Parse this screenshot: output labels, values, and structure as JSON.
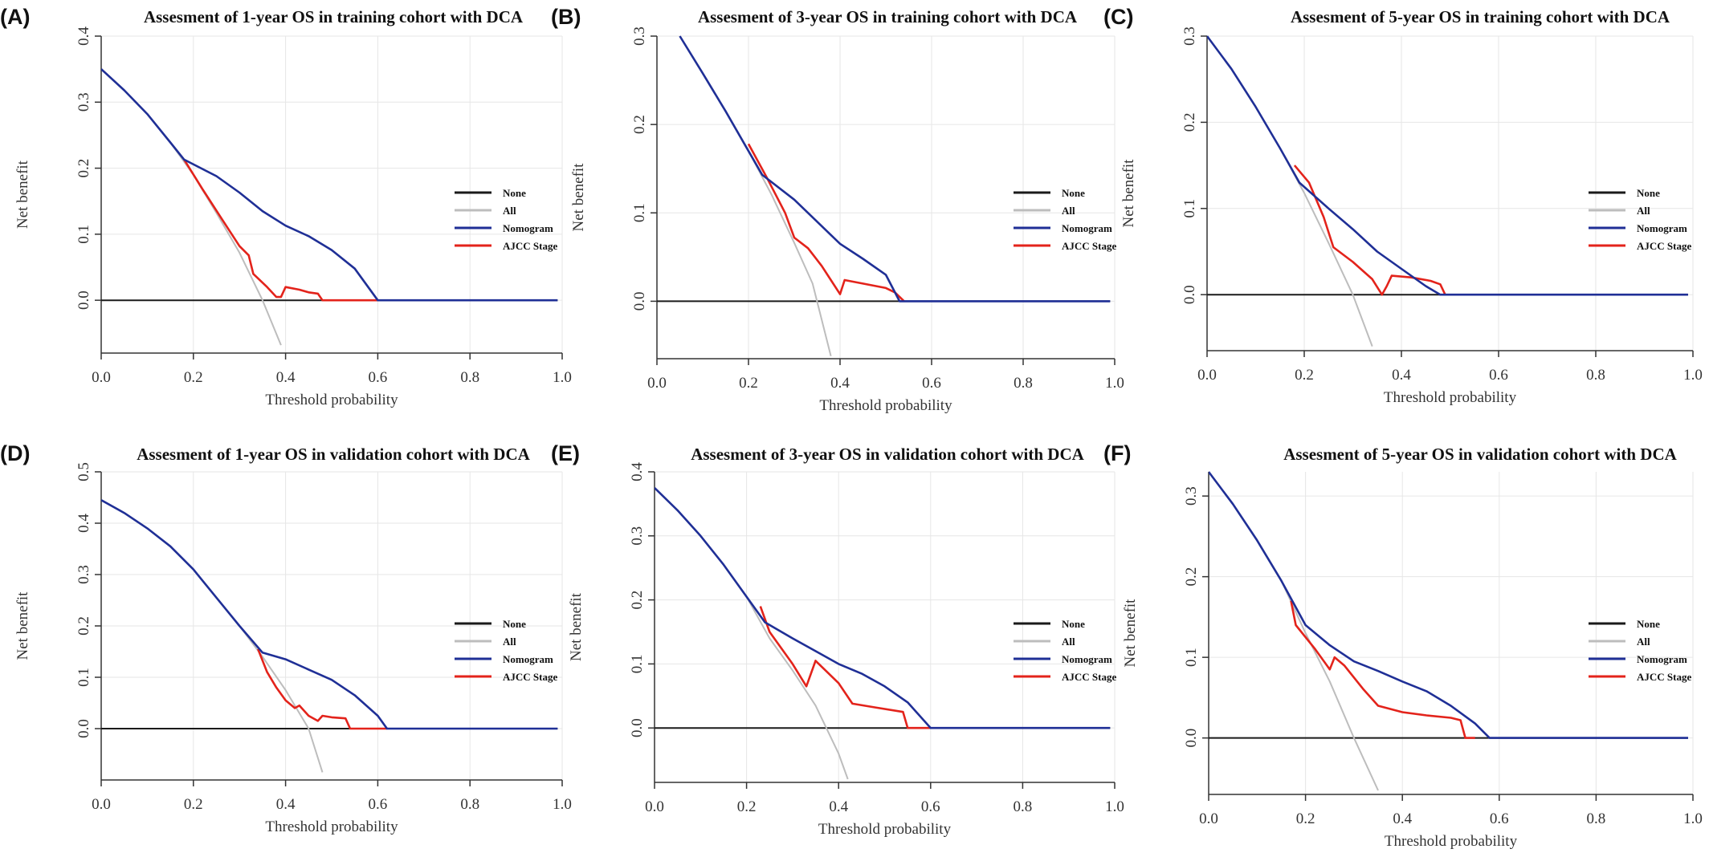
{
  "colors": {
    "none": "#1a1a1a",
    "all": "#bdbdbd",
    "nomogram": "#1f2f96",
    "ajcc": "#e3231b",
    "grid": "#e6e6e6"
  },
  "chart_data": [
    {
      "letter": "(A)",
      "type": "line",
      "title": "Assesment of 1-year OS in training cohort with DCA",
      "xlabel": "Threshold probability",
      "ylabel": "Net benefit",
      "xlim": [
        0,
        1
      ],
      "ylim": [
        -0.08,
        0.4
      ],
      "xticks": [
        0,
        0.2,
        0.4,
        0.6,
        0.8,
        1
      ],
      "xtick_labels": [
        "0.0",
        "0.2",
        "0.4",
        "0.6",
        "0.8",
        "1.0"
      ],
      "yticks": [
        0,
        0.1,
        0.2,
        0.3,
        0.4
      ],
      "ytick_labels": [
        "0.0",
        "0.1",
        "0.2",
        "0.3",
        "0.4"
      ],
      "grid": true,
      "legend": "right",
      "series": [
        {
          "name": "None",
          "x": [
            0,
            0.99
          ],
          "y": [
            0,
            0
          ]
        },
        {
          "name": "All",
          "x": [
            0,
            0.05,
            0.1,
            0.15,
            0.2,
            0.25,
            0.3,
            0.35,
            0.39
          ],
          "y": [
            0.35,
            0.318,
            0.282,
            0.239,
            0.19,
            0.132,
            0.072,
            0.0,
            -0.068
          ]
        },
        {
          "name": "Nomogram",
          "x": [
            0,
            0.05,
            0.1,
            0.15,
            0.18,
            0.25,
            0.3,
            0.35,
            0.4,
            0.45,
            0.5,
            0.55,
            0.6,
            0.99
          ],
          "y": [
            0.35,
            0.318,
            0.282,
            0.239,
            0.213,
            0.188,
            0.163,
            0.135,
            0.113,
            0.097,
            0.076,
            0.048,
            0.0,
            0.0
          ]
        },
        {
          "name": "AJCC Stage",
          "x": [
            0.18,
            0.22,
            0.26,
            0.3,
            0.32,
            0.33,
            0.36,
            0.38,
            0.39,
            0.4,
            0.43,
            0.45,
            0.47,
            0.48,
            0.6
          ],
          "y": [
            0.213,
            0.168,
            0.125,
            0.082,
            0.068,
            0.04,
            0.02,
            0.005,
            0.005,
            0.02,
            0.016,
            0.012,
            0.01,
            0.0,
            0.0
          ]
        }
      ]
    },
    {
      "letter": "(B)",
      "type": "line",
      "title": "Assesment of 3-year OS in training cohort with DCA",
      "xlabel": "Threshold probability",
      "ylabel": "Net benefit",
      "xlim": [
        0,
        1
      ],
      "ylim": [
        -0.065,
        0.3
      ],
      "xticks": [
        0,
        0.2,
        0.4,
        0.6,
        0.8,
        1
      ],
      "xtick_labels": [
        "0.0",
        "0.2",
        "0.4",
        "0.6",
        "0.8",
        "1.0"
      ],
      "yticks": [
        0,
        0.1,
        0.2,
        0.3
      ],
      "ytick_labels": [
        "0.0",
        "0.1",
        "0.2",
        "0.3"
      ],
      "grid": true,
      "legend": "right",
      "series": [
        {
          "name": "None",
          "x": [
            0,
            0.99
          ],
          "y": [
            0,
            0
          ]
        },
        {
          "name": "All",
          "x": [
            0.05,
            0.1,
            0.15,
            0.2,
            0.25,
            0.3,
            0.34,
            0.38
          ],
          "y": [
            0.3,
            0.258,
            0.215,
            0.17,
            0.121,
            0.066,
            0.02,
            -0.062
          ]
        },
        {
          "name": "Nomogram",
          "x": [
            0.05,
            0.1,
            0.15,
            0.2,
            0.23,
            0.3,
            0.35,
            0.4,
            0.45,
            0.5,
            0.53,
            0.99
          ],
          "y": [
            0.3,
            0.258,
            0.215,
            0.17,
            0.143,
            0.115,
            0.09,
            0.065,
            0.048,
            0.03,
            0.0,
            0.0
          ]
        },
        {
          "name": "AJCC Stage",
          "x": [
            0.2,
            0.24,
            0.28,
            0.3,
            0.33,
            0.36,
            0.38,
            0.4,
            0.41,
            0.45,
            0.5,
            0.52,
            0.54
          ],
          "y": [
            0.178,
            0.14,
            0.1,
            0.072,
            0.06,
            0.04,
            0.024,
            0.008,
            0.024,
            0.02,
            0.015,
            0.01,
            0.0
          ]
        }
      ]
    },
    {
      "letter": "(C)",
      "type": "line",
      "title": "Assesment of 5-year OS in training cohort with DCA",
      "xlabel": "Threshold probability",
      "ylabel": "Net benefit",
      "xlim": [
        0,
        1
      ],
      "ylim": [
        -0.065,
        0.3
      ],
      "xticks": [
        0,
        0.2,
        0.4,
        0.6,
        0.8,
        1
      ],
      "xtick_labels": [
        "0.0",
        "0.2",
        "0.4",
        "0.6",
        "0.8",
        "1.0"
      ],
      "yticks": [
        0,
        0.1,
        0.2,
        0.3
      ],
      "ytick_labels": [
        "0.0",
        "0.1",
        "0.2",
        "0.3"
      ],
      "grid": true,
      "legend": "right",
      "series": [
        {
          "name": "None",
          "x": [
            0,
            0.99
          ],
          "y": [
            0,
            0
          ]
        },
        {
          "name": "All",
          "x": [
            0,
            0.05,
            0.1,
            0.15,
            0.2,
            0.25,
            0.3,
            0.34
          ],
          "y": [
            0.3,
            0.262,
            0.218,
            0.17,
            0.118,
            0.06,
            0.0,
            -0.06
          ]
        },
        {
          "name": "Nomogram",
          "x": [
            0,
            0.05,
            0.1,
            0.15,
            0.19,
            0.25,
            0.3,
            0.35,
            0.4,
            0.45,
            0.48,
            0.99
          ],
          "y": [
            0.3,
            0.262,
            0.218,
            0.17,
            0.13,
            0.1,
            0.076,
            0.05,
            0.03,
            0.01,
            0.0,
            0.0
          ]
        },
        {
          "name": "AJCC Stage",
          "x": [
            0.18,
            0.21,
            0.24,
            0.26,
            0.3,
            0.34,
            0.36,
            0.37,
            0.38,
            0.42,
            0.46,
            0.48,
            0.49
          ],
          "y": [
            0.15,
            0.13,
            0.09,
            0.055,
            0.038,
            0.018,
            0.0,
            0.01,
            0.022,
            0.02,
            0.016,
            0.012,
            0.0
          ]
        }
      ]
    },
    {
      "letter": "(D)",
      "type": "line",
      "title": "Assesment of 1-year OS in validation cohort with DCA",
      "xlabel": "Threshold probability",
      "ylabel": "Net benefit",
      "xlim": [
        0,
        1
      ],
      "ylim": [
        -0.1,
        0.5
      ],
      "xticks": [
        0,
        0.2,
        0.4,
        0.6,
        0.8,
        1
      ],
      "xtick_labels": [
        "0.0",
        "0.2",
        "0.4",
        "0.6",
        "0.8",
        "1.0"
      ],
      "yticks": [
        0,
        0.1,
        0.2,
        0.3,
        0.4,
        0.5
      ],
      "ytick_labels": [
        "0.0",
        "0.1",
        "0.2",
        "0.3",
        "0.4",
        "0.5"
      ],
      "grid": true,
      "legend": "right",
      "series": [
        {
          "name": "None",
          "x": [
            0,
            0.99
          ],
          "y": [
            0,
            0
          ]
        },
        {
          "name": "All",
          "x": [
            0,
            0.05,
            0.1,
            0.15,
            0.2,
            0.25,
            0.3,
            0.35,
            0.4,
            0.45,
            0.48
          ],
          "y": [
            0.445,
            0.42,
            0.39,
            0.355,
            0.31,
            0.255,
            0.2,
            0.14,
            0.075,
            0.0,
            -0.085
          ]
        },
        {
          "name": "Nomogram",
          "x": [
            0,
            0.05,
            0.1,
            0.15,
            0.2,
            0.25,
            0.3,
            0.35,
            0.4,
            0.45,
            0.5,
            0.55,
            0.6,
            0.62,
            0.99
          ],
          "y": [
            0.445,
            0.42,
            0.39,
            0.355,
            0.31,
            0.255,
            0.2,
            0.148,
            0.135,
            0.115,
            0.095,
            0.065,
            0.025,
            0.0,
            0.0
          ]
        },
        {
          "name": "AJCC Stage",
          "x": [
            0.34,
            0.36,
            0.38,
            0.4,
            0.42,
            0.43,
            0.45,
            0.47,
            0.48,
            0.5,
            0.53,
            0.54,
            0.62
          ],
          "y": [
            0.155,
            0.11,
            0.08,
            0.055,
            0.04,
            0.045,
            0.025,
            0.015,
            0.025,
            0.022,
            0.02,
            0.0,
            0.0
          ]
        }
      ]
    },
    {
      "letter": "(E)",
      "type": "line",
      "title": "Assesment of 3-year OS in validation cohort with DCA",
      "xlabel": "Threshold probability",
      "ylabel": "Net benefit",
      "xlim": [
        0,
        1
      ],
      "ylim": [
        -0.085,
        0.4
      ],
      "xticks": [
        0,
        0.2,
        0.4,
        0.6,
        0.8,
        1
      ],
      "xtick_labels": [
        "0.0",
        "0.2",
        "0.4",
        "0.6",
        "0.8",
        "1.0"
      ],
      "yticks": [
        0,
        0.1,
        0.2,
        0.3,
        0.4
      ],
      "ytick_labels": [
        "0.0",
        "0.1",
        "0.2",
        "0.3",
        "0.4"
      ],
      "grid": true,
      "legend": "right",
      "series": [
        {
          "name": "None",
          "x": [
            0,
            0.99
          ],
          "y": [
            0,
            0
          ]
        },
        {
          "name": "All",
          "x": [
            0,
            0.05,
            0.1,
            0.15,
            0.2,
            0.25,
            0.3,
            0.35,
            0.4,
            0.42
          ],
          "y": [
            0.375,
            0.34,
            0.3,
            0.255,
            0.205,
            0.14,
            0.09,
            0.035,
            -0.04,
            -0.08
          ]
        },
        {
          "name": "Nomogram",
          "x": [
            0,
            0.05,
            0.1,
            0.15,
            0.2,
            0.24,
            0.3,
            0.35,
            0.4,
            0.45,
            0.5,
            0.55,
            0.6,
            0.99
          ],
          "y": [
            0.375,
            0.34,
            0.3,
            0.255,
            0.205,
            0.165,
            0.14,
            0.12,
            0.1,
            0.085,
            0.065,
            0.04,
            0.0,
            0.0
          ]
        },
        {
          "name": "AJCC Stage",
          "x": [
            0.23,
            0.25,
            0.3,
            0.33,
            0.35,
            0.4,
            0.43,
            0.48,
            0.54,
            0.55,
            0.6
          ],
          "y": [
            0.19,
            0.15,
            0.1,
            0.065,
            0.105,
            0.07,
            0.038,
            0.032,
            0.025,
            0.0,
            0.0
          ]
        }
      ]
    },
    {
      "letter": "(F)",
      "type": "line",
      "title": "Assesment of 5-year OS in validation cohort with DCA",
      "xlabel": "Threshold probability",
      "ylabel": "Net benefit",
      "xlim": [
        0,
        1
      ],
      "ylim": [
        -0.07,
        0.33
      ],
      "xticks": [
        0,
        0.2,
        0.4,
        0.6,
        0.8,
        1
      ],
      "xtick_labels": [
        "0.0",
        "0.2",
        "0.4",
        "0.6",
        "0.8",
        "1.0"
      ],
      "yticks": [
        0,
        0.1,
        0.2,
        0.3
      ],
      "ytick_labels": [
        "0.0",
        "0.1",
        "0.2",
        "0.3"
      ],
      "grid": true,
      "legend": "right",
      "series": [
        {
          "name": "None",
          "x": [
            0,
            0.99
          ],
          "y": [
            0,
            0
          ]
        },
        {
          "name": "All",
          "x": [
            0,
            0.05,
            0.1,
            0.15,
            0.2,
            0.25,
            0.3,
            0.35
          ],
          "y": [
            0.33,
            0.29,
            0.245,
            0.195,
            0.13,
            0.07,
            0.0,
            -0.065
          ]
        },
        {
          "name": "Nomogram",
          "x": [
            0,
            0.05,
            0.1,
            0.15,
            0.2,
            0.25,
            0.3,
            0.35,
            0.4,
            0.45,
            0.5,
            0.55,
            0.58,
            0.99
          ],
          "y": [
            0.33,
            0.29,
            0.245,
            0.195,
            0.14,
            0.115,
            0.095,
            0.083,
            0.07,
            0.058,
            0.04,
            0.018,
            0.0,
            0.0
          ]
        },
        {
          "name": "AJCC Stage",
          "x": [
            0.17,
            0.18,
            0.22,
            0.25,
            0.26,
            0.28,
            0.32,
            0.35,
            0.4,
            0.45,
            0.5,
            0.52,
            0.53,
            0.55
          ],
          "y": [
            0.17,
            0.14,
            0.11,
            0.085,
            0.1,
            0.09,
            0.06,
            0.04,
            0.032,
            0.028,
            0.025,
            0.022,
            0.0,
            0.0
          ]
        }
      ]
    }
  ]
}
